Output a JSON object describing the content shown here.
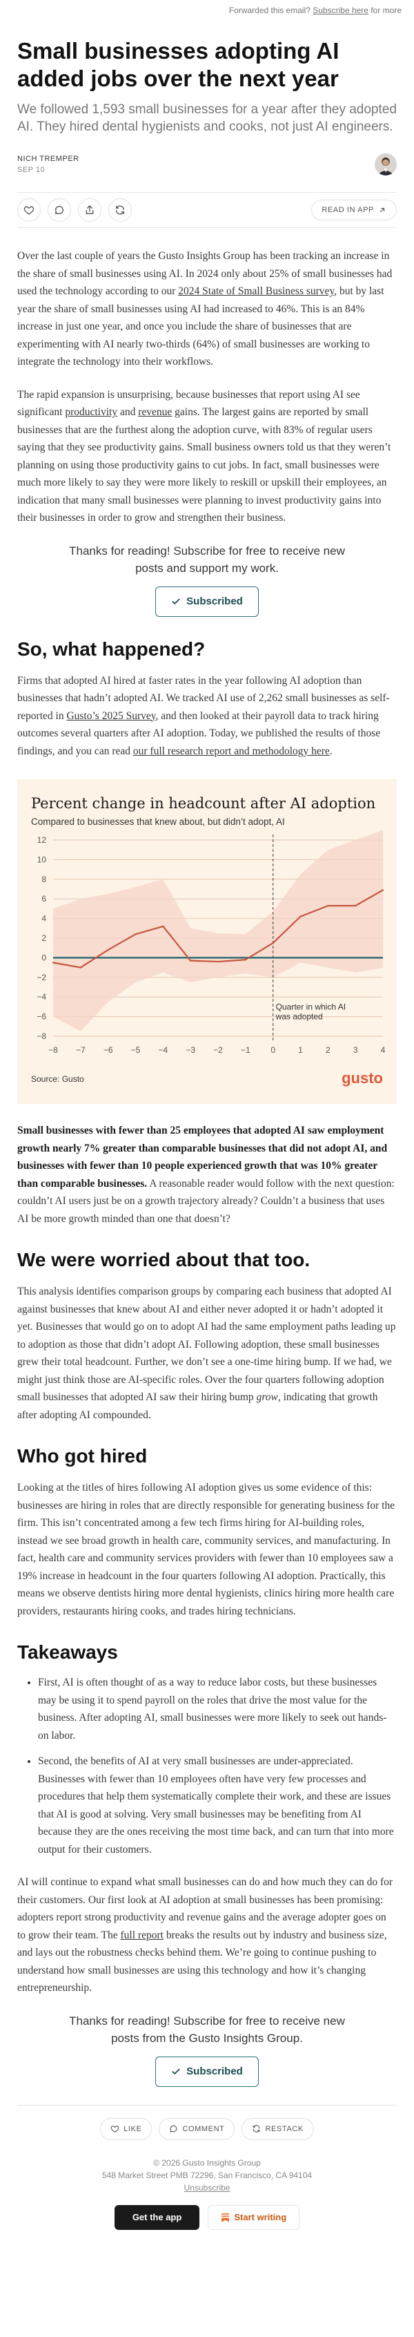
{
  "forward": {
    "prefix": "Forwarded this email?",
    "link": "Subscribe here",
    "suffix": "for more"
  },
  "post": {
    "title": "Small businesses adopting AI added jobs over the next year",
    "subtitle": "We followed 1,593 small businesses for a year after they adopted AI. They hired dental hygienists and cooks, not just AI engineers.",
    "author": "NICH TREMPER",
    "date": "SEP 10",
    "read_in_app": "READ IN APP"
  },
  "icons": {
    "like": "heart-icon",
    "comment": "comment-icon",
    "share": "share-icon",
    "restack": "restack-icon"
  },
  "p1": {
    "a": "Over the last couple of years the Gusto Insights Group has been tracking an increase in the share of small businesses using AI. In 2024 only about 25% of small businesses had used the technology according to our ",
    "link": "2024 State of Small Business survey",
    "b": ", but by last year the share of small businesses using AI had increased to 46%. This is an 84% increase in just one year, and once you include the share of businesses that are experimenting with AI nearly two-thirds (64%) of small businesses are working to integrate the technology into their workflows."
  },
  "p2": {
    "a": "The rapid expansion is unsurprising, because businesses that report using AI see significant ",
    "link1": "productivity",
    "and": " and ",
    "link2": "revenue",
    "b": " gains. The largest gains are reported by small businesses that are the furthest along the adoption curve, with 83% of regular users saying that they see productivity gains. Small business owners told us that they weren’t planning on using those productivity gains to cut jobs. In fact, small businesses were much more likely to say they were more likely to reskill or upskill their employees, an indication that many small businesses were planning to invest productivity gains into their businesses in order to grow and strengthen their business."
  },
  "subscribe1": {
    "text": "Thanks for reading! Subscribe for free to receive new posts and support my work.",
    "button": "Subscribed"
  },
  "h_what": "So, what happened?",
  "p3": {
    "a": "Firms that adopted AI hired at faster rates in the year following AI adoption than businesses that hadn’t adopted AI. We tracked AI use of 2,262 small businesses as self-reported in ",
    "link1": "Gusto’s 2025 Survey",
    "b": ", and then looked at their payroll data to track hiring outcomes several quarters after AI adoption. Today, we published the results of those findings, and you can read ",
    "link2": "our full research report and methodology here",
    "c": "."
  },
  "chart_data": {
    "type": "line",
    "title": "Percent change in headcount after AI adoption",
    "subtitle": "Compared to businesses that knew about, but didn’t adopt, AI",
    "x": [
      -8,
      -7,
      -6,
      -5,
      -4,
      -3,
      -2,
      -1,
      0,
      1,
      2,
      3,
      4
    ],
    "series": [
      {
        "values": [
          -0.5,
          -1,
          0.8,
          2.4,
          3.2,
          -0.3,
          -0.4,
          -0.2,
          1.5,
          4.2,
          5.3,
          5.3,
          6.9
        ],
        "upper": [
          5,
          6,
          6.5,
          7.2,
          8,
          3,
          2.5,
          2.4,
          4.7,
          8.5,
          11,
          12,
          13
        ],
        "lower": [
          -6,
          -7.5,
          -4.5,
          -2.5,
          -1.5,
          -2.5,
          -2,
          -1.6,
          -2,
          -0.5,
          -1,
          -1.5,
          -1
        ]
      }
    ],
    "xlim": [
      -8,
      4
    ],
    "ylim": [
      -8,
      12
    ],
    "yticks": [
      -8,
      -6,
      -4,
      -2,
      0,
      2,
      4,
      6,
      8,
      10,
      12
    ],
    "annotation": "Quarter in which AI was adopted",
    "source": "Source: Gusto",
    "logo": "gusto",
    "colors": {
      "line": "#c4553e",
      "band": "#f6d4c8",
      "zero": "#2d6f74",
      "grid": "#e3c6b0",
      "logo": "#e05a3a"
    }
  },
  "p4": {
    "strong1": "Small businesses with fewer than 25 employees that adopted AI saw employment growth nearly 7% greater than comparable businesses that did not adopt AI, and businesses with fewer than 10 people experienced growth that was 10% greater than comparable businesses.",
    "b": " A reasonable reader would follow with the next question: couldn’t AI users just be on a growth trajectory already? Couldn’t a business that uses AI be more growth minded than one that doesn’t?"
  },
  "h_worried": "We were worried about that too.",
  "p5": {
    "a": "This analysis identifies comparison groups by comparing each business that adopted AI against businesses that knew about AI and either never adopted it or hadn’t adopted it yet. Businesses that would go on to adopt AI had the same employment paths leading up to adoption as those that didn’t adopt AI. Following adoption, these small businesses grew their total headcount. Further, we don’t see a one-time hiring bump. If we had, we might just think those are AI-specific roles. Over the four quarters following adoption small businesses that adopted AI saw their hiring bump ",
    "em": "grow",
    "b": ", indicating that growth after adopting AI compounded."
  },
  "h_hired": "Who got hired",
  "p6": "Looking at the titles of hires following AI adoption gives us some evidence of this: businesses are hiring in roles that are directly responsible for generating business for the firm. This isn’t concentrated among a few tech firms hiring for AI-building roles, instead we see broad growth in health care, community services, and manufacturing. In fact, health care and community services providers with fewer than 10 employees saw a 19% increase in headcount in the four quarters following AI adoption. Practically, this means we observe dentists hiring more dental hygienists, clinics hiring more health care providers, restaurants hiring cooks, and trades hiring technicians.",
  "h_takeaways": "Takeaways",
  "takeaways": [
    "First, AI is often thought of as a way to reduce labor costs, but these businesses may be using it to spend payroll on the roles that drive the most value for the business. After adopting AI, small businesses were more likely to seek out hands-on labor.",
    "Second, the benefits of AI at very small businesses are under-appreciated. Businesses with fewer than 10 employees often have very few processes and procedures that help them systematically complete their work, and these are issues that AI is good at solving. Very small businesses may be benefiting from AI because they are the ones receiving the most time back, and can turn that into more output for their customers."
  ],
  "p7": {
    "a": "AI will continue to expand what small businesses can do and how much they can do for their customers. Our first look at AI adoption at small businesses has been promising: adopters report strong productivity and revenue gains and the average adopter goes on to grow their team. The ",
    "link": "full report",
    "b": " breaks the results out by industry and business size, and lays out the robustness checks behind them. We’re going to continue pushing to understand how small businesses are using this technology and how it’s changing entrepreneurship."
  },
  "subscribe2": {
    "text": "Thanks for reading! Subscribe for free to receive new posts from the Gusto Insights Group.",
    "button": "Subscribed"
  },
  "footer": {
    "like": "LIKE",
    "comment": "COMMENT",
    "restack": "RESTACK",
    "copyright": "© 2026 Gusto Insights Group",
    "address": "548 Market Street PMB 72296, San Francisco, CA 94104",
    "unsubscribe": "Unsubscribe",
    "get_app": "Get the app",
    "start_writing": "Start writing"
  }
}
